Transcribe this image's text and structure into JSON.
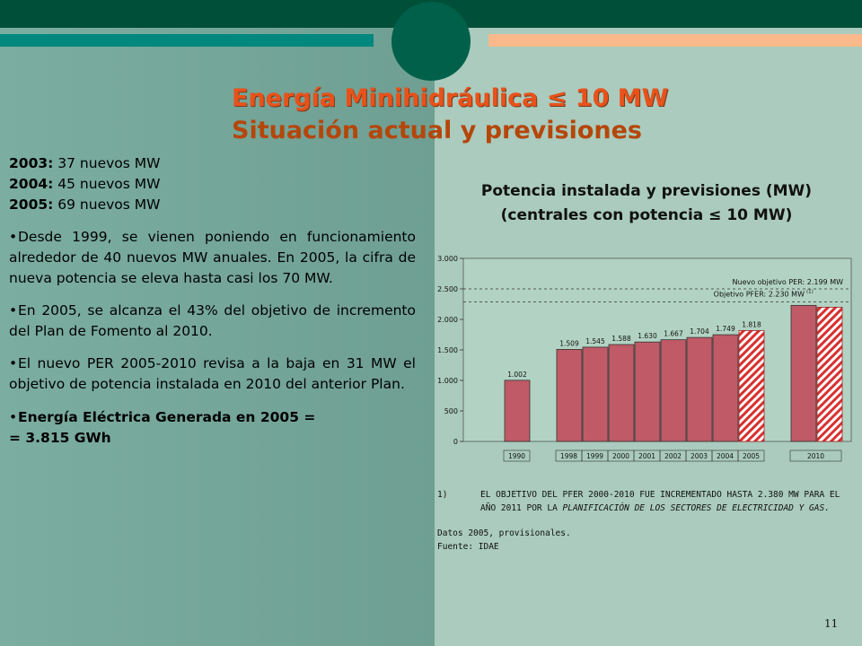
{
  "title": {
    "line1": "Energía Minihidráulica ≤ 10 MW",
    "line2": "Situación actual y previsiones"
  },
  "left": {
    "years": [
      {
        "year": "2003:",
        "text": " 37 nuevos MW"
      },
      {
        "year": "2004:",
        "text": " 45 nuevos MW"
      },
      {
        "year": "2005:",
        "text": " 69 nuevos MW"
      }
    ],
    "bullets": [
      "Desde 1999, se vienen poniendo en funcionamiento alrededor de 40 nuevos MW anuales. En 2005, la cifra de nueva potencia se eleva hasta casi los 70 MW.",
      "En 2005, se alcanza el 43% del objetivo de incremento del Plan de Fomento al 2010.",
      "El nuevo PER 2005-2010 revisa a la baja en 31 MW el objetivo de potencia instalada en 2010 del anterior Plan."
    ],
    "energy_line1": "Energía Eléctrica Generada en 2005 =",
    "energy_line2": "= 3.815 GWh"
  },
  "chart_title": {
    "line1": "Potencia instalada y previsiones (MW)",
    "line2": "(centrales con potencia ≤ 10 MW)"
  },
  "chart_data": {
    "type": "bar",
    "categories": [
      "1990",
      "1998",
      "1999",
      "2000",
      "2001",
      "2002",
      "2003",
      "2004",
      "2005",
      "2010",
      "2010"
    ],
    "values": [
      1002,
      1509,
      1545,
      1588,
      1630,
      1667,
      1704,
      1749,
      1818,
      2230,
      2199
    ],
    "value_labels": [
      "1.002",
      "1.509",
      "1.545",
      "1.588",
      "1.630",
      "1.667",
      "1.704",
      "1.749",
      "1.818",
      "",
      ""
    ],
    "x_tick_labels": [
      "1990",
      "1998",
      "1999",
      "2000",
      "2001",
      "2002",
      "2003",
      "2004",
      "2005",
      "2010"
    ],
    "ylim": [
      0,
      3000
    ],
    "yticks": [
      0,
      500,
      1000,
      1500,
      2000,
      2500,
      3000
    ],
    "ytick_labels": [
      "0",
      "500",
      "1.000",
      "1.500",
      "2.000",
      "2.500",
      "3.000"
    ],
    "reference_lines": [
      {
        "label": "Nuevo objetivo PER: 2.199 MW",
        "value": 2199
      },
      {
        "label": "Objetivo PFER: 2.230 MW",
        "sup": "(1)",
        "value": 2230
      }
    ],
    "bar_colors": {
      "solid": "#c05a66",
      "hatched": "#d83030"
    },
    "grid": false
  },
  "notes": {
    "n1_num": "1)",
    "n1_plain": "EL OBJETIVO DEL PFER 2000-2010 FUE INCREMENTADO HASTA 2.380 MW PARA EL AÑO 2011 POR LA ",
    "n1_italic": "PLANIFICACIÓN DE LOS SECTORES DE ELECTRICIDAD Y GAS.",
    "datos": "Datos 2005, provisionales.",
    "fuente": "Fuente: IDAE"
  },
  "page_number": "11"
}
